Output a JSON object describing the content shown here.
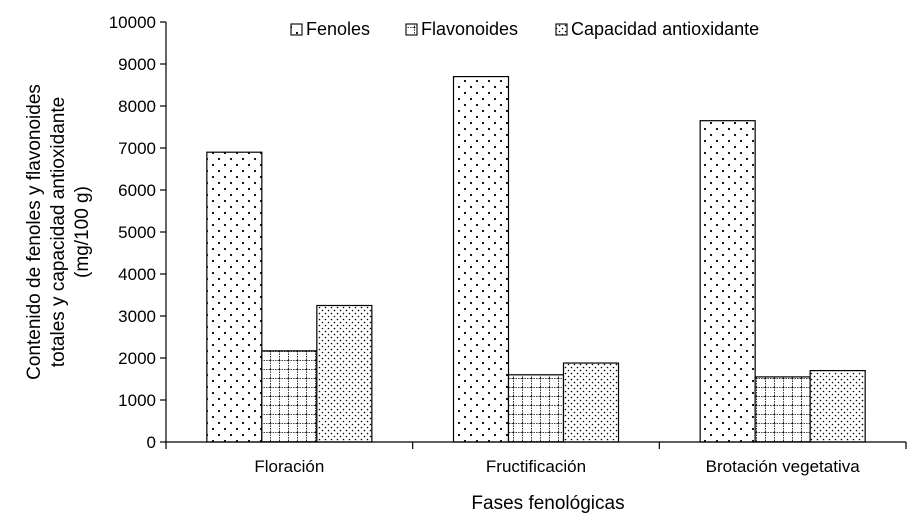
{
  "chart_data": {
    "type": "bar",
    "categories": [
      "Floración",
      "Fructificación",
      "Brotación vegetativa"
    ],
    "series": [
      {
        "name": "Fenoles",
        "values": [
          6900,
          8700,
          7650
        ]
      },
      {
        "name": "Flavonoides",
        "values": [
          2170,
          1600,
          1550
        ]
      },
      {
        "name": "Capacidad antioxidante",
        "values": [
          3250,
          1880,
          1700
        ]
      }
    ],
    "title": "",
    "xlabel": "Fases fenológicas",
    "ylabel_lines": [
      "Contenido de fenoles y flavonoides",
      "totales y capacidad antioxidante",
      "(mg/100 g)"
    ],
    "ylim": [
      0,
      10000
    ],
    "yticks": [
      0,
      1000,
      2000,
      3000,
      4000,
      5000,
      6000,
      7000,
      8000,
      9000,
      10000
    ],
    "legend_position": "top",
    "grid": false
  }
}
